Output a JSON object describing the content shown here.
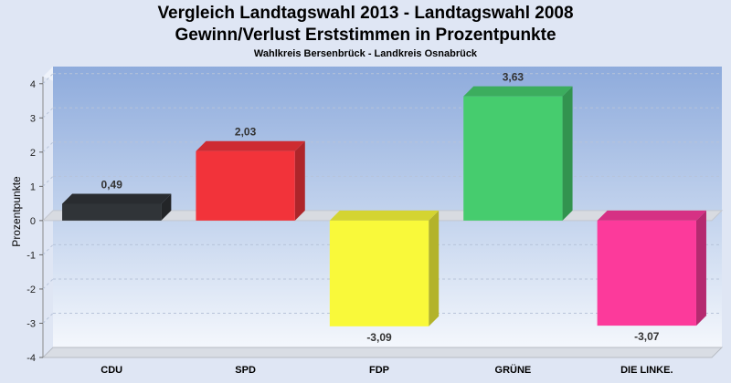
{
  "chart_data": {
    "type": "bar",
    "title": "Vergleich Landtagswahl 2013 - Landtagswahl 2008",
    "subtitle": "Gewinn/Verlust Erststimmen in Prozentpunkte",
    "caption": "Wahlkreis Bersenbrück - Landkreis Osnabrück",
    "xlabel": "",
    "ylabel": "Prozentpunkte",
    "ylim": [
      -4,
      4.5
    ],
    "yticks": [
      4,
      3,
      2,
      1,
      0,
      -1,
      -2,
      -3,
      -4
    ],
    "grid": true,
    "categories": [
      "CDU",
      "SPD",
      "FDP",
      "GRÜNE",
      "DIE LINKE."
    ],
    "values": [
      0.49,
      2.03,
      -3.09,
      3.63,
      -3.07
    ],
    "value_labels": [
      "0,49",
      "2,03",
      "-3,09",
      "3,63",
      "-3,07"
    ],
    "colors": [
      "#303438",
      "#f2333a",
      "#f9f93a",
      "#46cc6e",
      "#fc3a9b"
    ]
  }
}
